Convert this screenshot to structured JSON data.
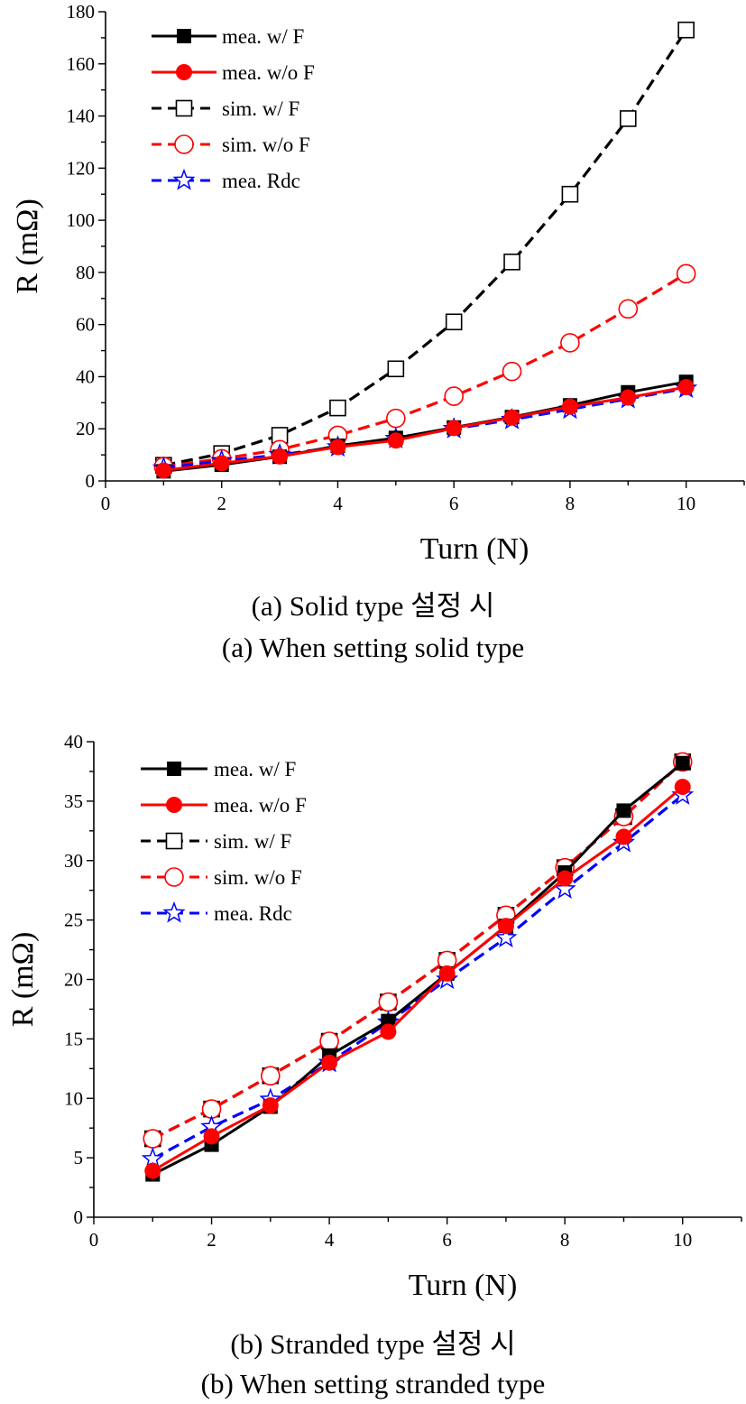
{
  "chart_data": [
    {
      "type": "line",
      "caption_ko": "(a) Solid type 설정 시",
      "caption_en": "(a) When setting solid type",
      "xlabel": "Turn (N)",
      "ylabel": "R (mΩ)",
      "xlim": [
        0,
        11
      ],
      "ylim": [
        0,
        180
      ],
      "xticks": [
        0,
        2,
        4,
        6,
        8,
        10
      ],
      "yticks": [
        0,
        20,
        40,
        60,
        80,
        100,
        120,
        140,
        160,
        180
      ],
      "legend_position": "top-left",
      "grid": false,
      "x": [
        1,
        2,
        3,
        4,
        5,
        6,
        7,
        8,
        9,
        10
      ],
      "series": [
        {
          "name": "mea. w/ F",
          "color": "#000000",
          "style": "solid",
          "marker": "filled-square",
          "values": [
            3.7,
            6.2,
            9.3,
            13.5,
            16.5,
            20.5,
            24.5,
            29.0,
            34.0,
            38.0
          ]
        },
        {
          "name": "mea. w/o F",
          "color": "#ff0000",
          "style": "solid",
          "marker": "filled-circle",
          "values": [
            4.0,
            6.8,
            9.4,
            13.0,
            15.5,
            20.3,
            24.3,
            28.5,
            32.0,
            36.0
          ]
        },
        {
          "name": "sim. w/ F",
          "color": "#000000",
          "style": "dashed",
          "marker": "open-square",
          "values": [
            6.0,
            10.5,
            17.5,
            28.0,
            43.0,
            61.0,
            84.0,
            110.0,
            139.0,
            173.0
          ]
        },
        {
          "name": "sim. w/o F",
          "color": "#ff0000",
          "style": "dashed",
          "marker": "open-circle",
          "values": [
            5.5,
            8.5,
            12.0,
            17.5,
            24.0,
            32.5,
            42.0,
            53.0,
            66.0,
            79.5
          ]
        },
        {
          "name": "mea. Rdc",
          "color": "#0000ff",
          "style": "dashed",
          "marker": "open-star",
          "values": [
            4.9,
            7.7,
            10.0,
            13.0,
            16.2,
            20.0,
            23.5,
            27.5,
            31.5,
            35.5
          ]
        }
      ]
    },
    {
      "type": "line",
      "caption_ko": "(b) Stranded type 설정 시",
      "caption_en": "(b) When setting stranded type",
      "xlabel": "Turn (N)",
      "ylabel": "R (mΩ)",
      "xlim": [
        0,
        11
      ],
      "ylim": [
        0,
        40
      ],
      "xticks": [
        0,
        2,
        4,
        6,
        8,
        10
      ],
      "yticks": [
        0,
        5,
        10,
        15,
        20,
        25,
        30,
        35,
        40
      ],
      "legend_position": "top-left",
      "grid": false,
      "x": [
        1,
        2,
        3,
        4,
        5,
        6,
        7,
        8,
        9,
        10
      ],
      "series": [
        {
          "name": "mea. w/ F",
          "color": "#000000",
          "style": "solid",
          "marker": "filled-square",
          "values": [
            3.6,
            6.1,
            9.3,
            13.6,
            16.5,
            20.5,
            24.5,
            29.0,
            34.2,
            38.2
          ]
        },
        {
          "name": "mea. w/o F",
          "color": "#ff0000",
          "style": "solid",
          "marker": "filled-circle",
          "values": [
            3.9,
            6.8,
            9.4,
            13.0,
            15.6,
            20.5,
            24.5,
            28.5,
            32.0,
            36.2
          ]
        },
        {
          "name": "sim. w/ F",
          "color": "#000000",
          "style": "dashed",
          "marker": "open-square",
          "values": [
            6.6,
            9.1,
            11.9,
            14.8,
            18.1,
            21.6,
            25.4,
            29.4,
            33.7,
            38.3
          ]
        },
        {
          "name": "sim. w/o F",
          "color": "#ff0000",
          "style": "dashed",
          "marker": "open-circle",
          "values": [
            6.6,
            9.1,
            11.9,
            14.8,
            18.1,
            21.6,
            25.4,
            29.4,
            33.7,
            38.3
          ]
        },
        {
          "name": "mea. Rdc",
          "color": "#0000ff",
          "style": "dashed",
          "marker": "open-star",
          "values": [
            4.9,
            7.6,
            9.9,
            13.0,
            16.4,
            20.0,
            23.5,
            27.6,
            31.5,
            35.5
          ]
        }
      ]
    }
  ]
}
